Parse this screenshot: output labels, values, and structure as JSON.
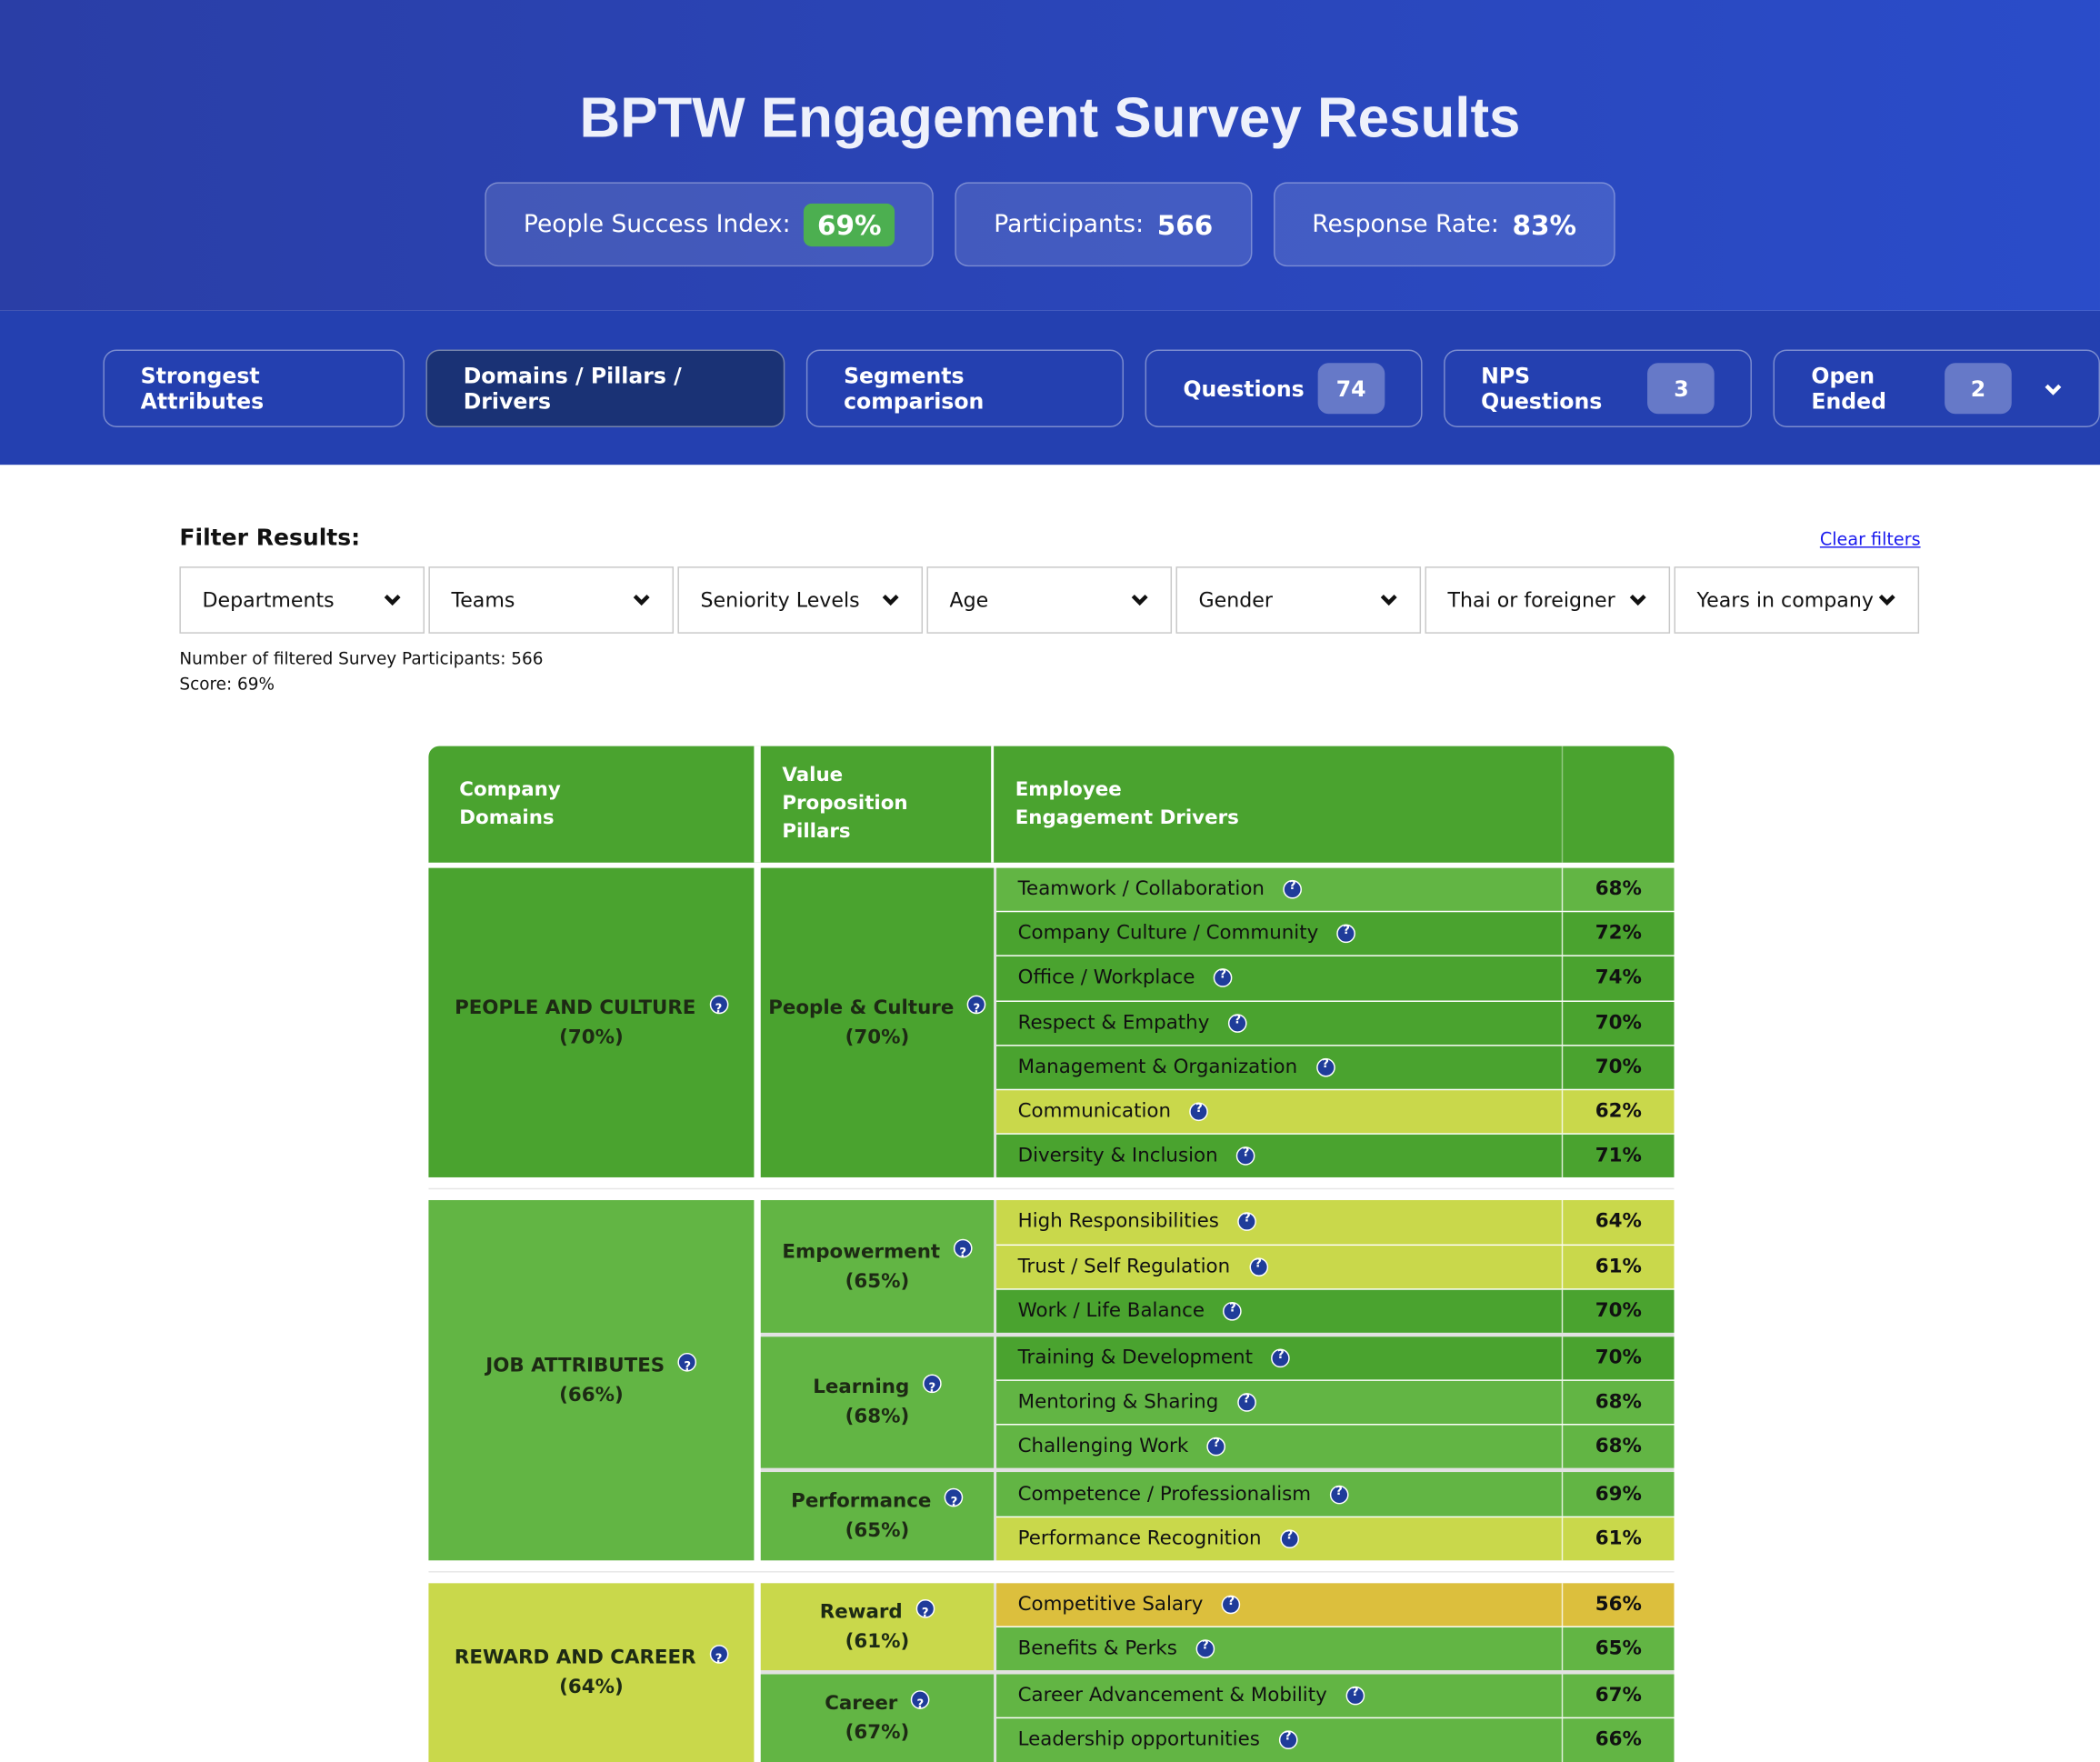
{
  "header": {
    "title": "BPTW Engagement Survey Results",
    "stats": [
      {
        "label": "People Success Index:",
        "value": "69%",
        "highlight": true
      },
      {
        "label": "Participants:",
        "value": "566"
      },
      {
        "label": "Response Rate:",
        "value": "83%"
      }
    ]
  },
  "tabs": [
    {
      "label": "Strongest Attributes"
    },
    {
      "label": "Domains / Pillars / Drivers",
      "active": true
    },
    {
      "label": "Segments comparison"
    },
    {
      "label": "Questions",
      "badge": "74"
    },
    {
      "label": "NPS Questions",
      "badge": "3"
    },
    {
      "label": "Open Ended",
      "badge": "2",
      "dropdown": true
    }
  ],
  "filters": {
    "title": "Filter Results:",
    "clear": "Clear filters",
    "dropdowns": [
      "Departments",
      "Teams",
      "Seniority Levels",
      "Age",
      "Gender",
      "Thai or foreigner",
      "Years in company"
    ],
    "participants": "Number of filtered Survey Participants: 566",
    "score": "Score: 69%"
  },
  "table": {
    "headers": [
      "Company\nDomains",
      "Value\nProposition\nPillars",
      "Employee\nEngagement Drivers"
    ],
    "groups": [
      {
        "domain": "PEOPLE AND CULTURE",
        "score": "(70%)",
        "color": "#4aa32f",
        "pillars": [
          {
            "name": "People & Culture",
            "score": "(70%)",
            "color": "#4aa32f",
            "drivers": [
              {
                "name": "Teamwork / Collaboration",
                "score": "68%",
                "color": "#62b544"
              },
              {
                "name": "Company Culture / Community",
                "score": "72%",
                "color": "#4aa32f"
              },
              {
                "name": "Office / Workplace",
                "score": "74%",
                "color": "#4aa32f"
              },
              {
                "name": "Respect & Empathy",
                "score": "70%",
                "color": "#4aa32f"
              },
              {
                "name": "Management & Organization",
                "score": "70%",
                "color": "#4aa32f"
              },
              {
                "name": "Communication",
                "score": "62%",
                "color": "#c9d84b"
              },
              {
                "name": "Diversity & Inclusion",
                "score": "71%",
                "color": "#4aa32f"
              }
            ]
          }
        ]
      },
      {
        "domain": "JOB ATTRIBUTES",
        "score": "(66%)",
        "color": "#62b544",
        "pillars": [
          {
            "name": "Empowerment",
            "score": "(65%)",
            "color": "#62b544",
            "drivers": [
              {
                "name": "High Responsibilities",
                "score": "64%",
                "color": "#c9d84b"
              },
              {
                "name": "Trust / Self Regulation",
                "score": "61%",
                "color": "#c9d84b"
              },
              {
                "name": "Work / Life Balance",
                "score": "70%",
                "color": "#4aa32f"
              }
            ]
          },
          {
            "name": "Learning",
            "score": "(68%)",
            "color": "#62b544",
            "drivers": [
              {
                "name": "Training & Development",
                "score": "70%",
                "color": "#4aa32f"
              },
              {
                "name": "Mentoring & Sharing",
                "score": "68%",
                "color": "#62b544"
              },
              {
                "name": "Challenging Work",
                "score": "68%",
                "color": "#62b544"
              }
            ]
          },
          {
            "name": "Performance",
            "score": "(65%)",
            "color": "#62b544",
            "drivers": [
              {
                "name": "Competence / Professionalism",
                "score": "69%",
                "color": "#62b544"
              },
              {
                "name": "Performance Recognition",
                "score": "61%",
                "color": "#c9d84b"
              }
            ]
          }
        ]
      },
      {
        "domain": "REWARD AND CAREER",
        "score": "(64%)",
        "color": "#c9d84b",
        "pillars": [
          {
            "name": "Reward",
            "score": "(61%)",
            "color": "#c9d84b",
            "drivers": [
              {
                "name": "Competitive Salary",
                "score": "56%",
                "color": "#dcbf3d"
              },
              {
                "name": "Benefits & Perks",
                "score": "65%",
                "color": "#62b544"
              }
            ]
          },
          {
            "name": "Career",
            "score": "(67%)",
            "color": "#62b544",
            "drivers": [
              {
                "name": "Career Advancement & Mobility",
                "score": "67%",
                "color": "#62b544"
              },
              {
                "name": "Leadership opportunities",
                "score": "66%",
                "color": "#62b544"
              }
            ]
          }
        ]
      }
    ]
  }
}
